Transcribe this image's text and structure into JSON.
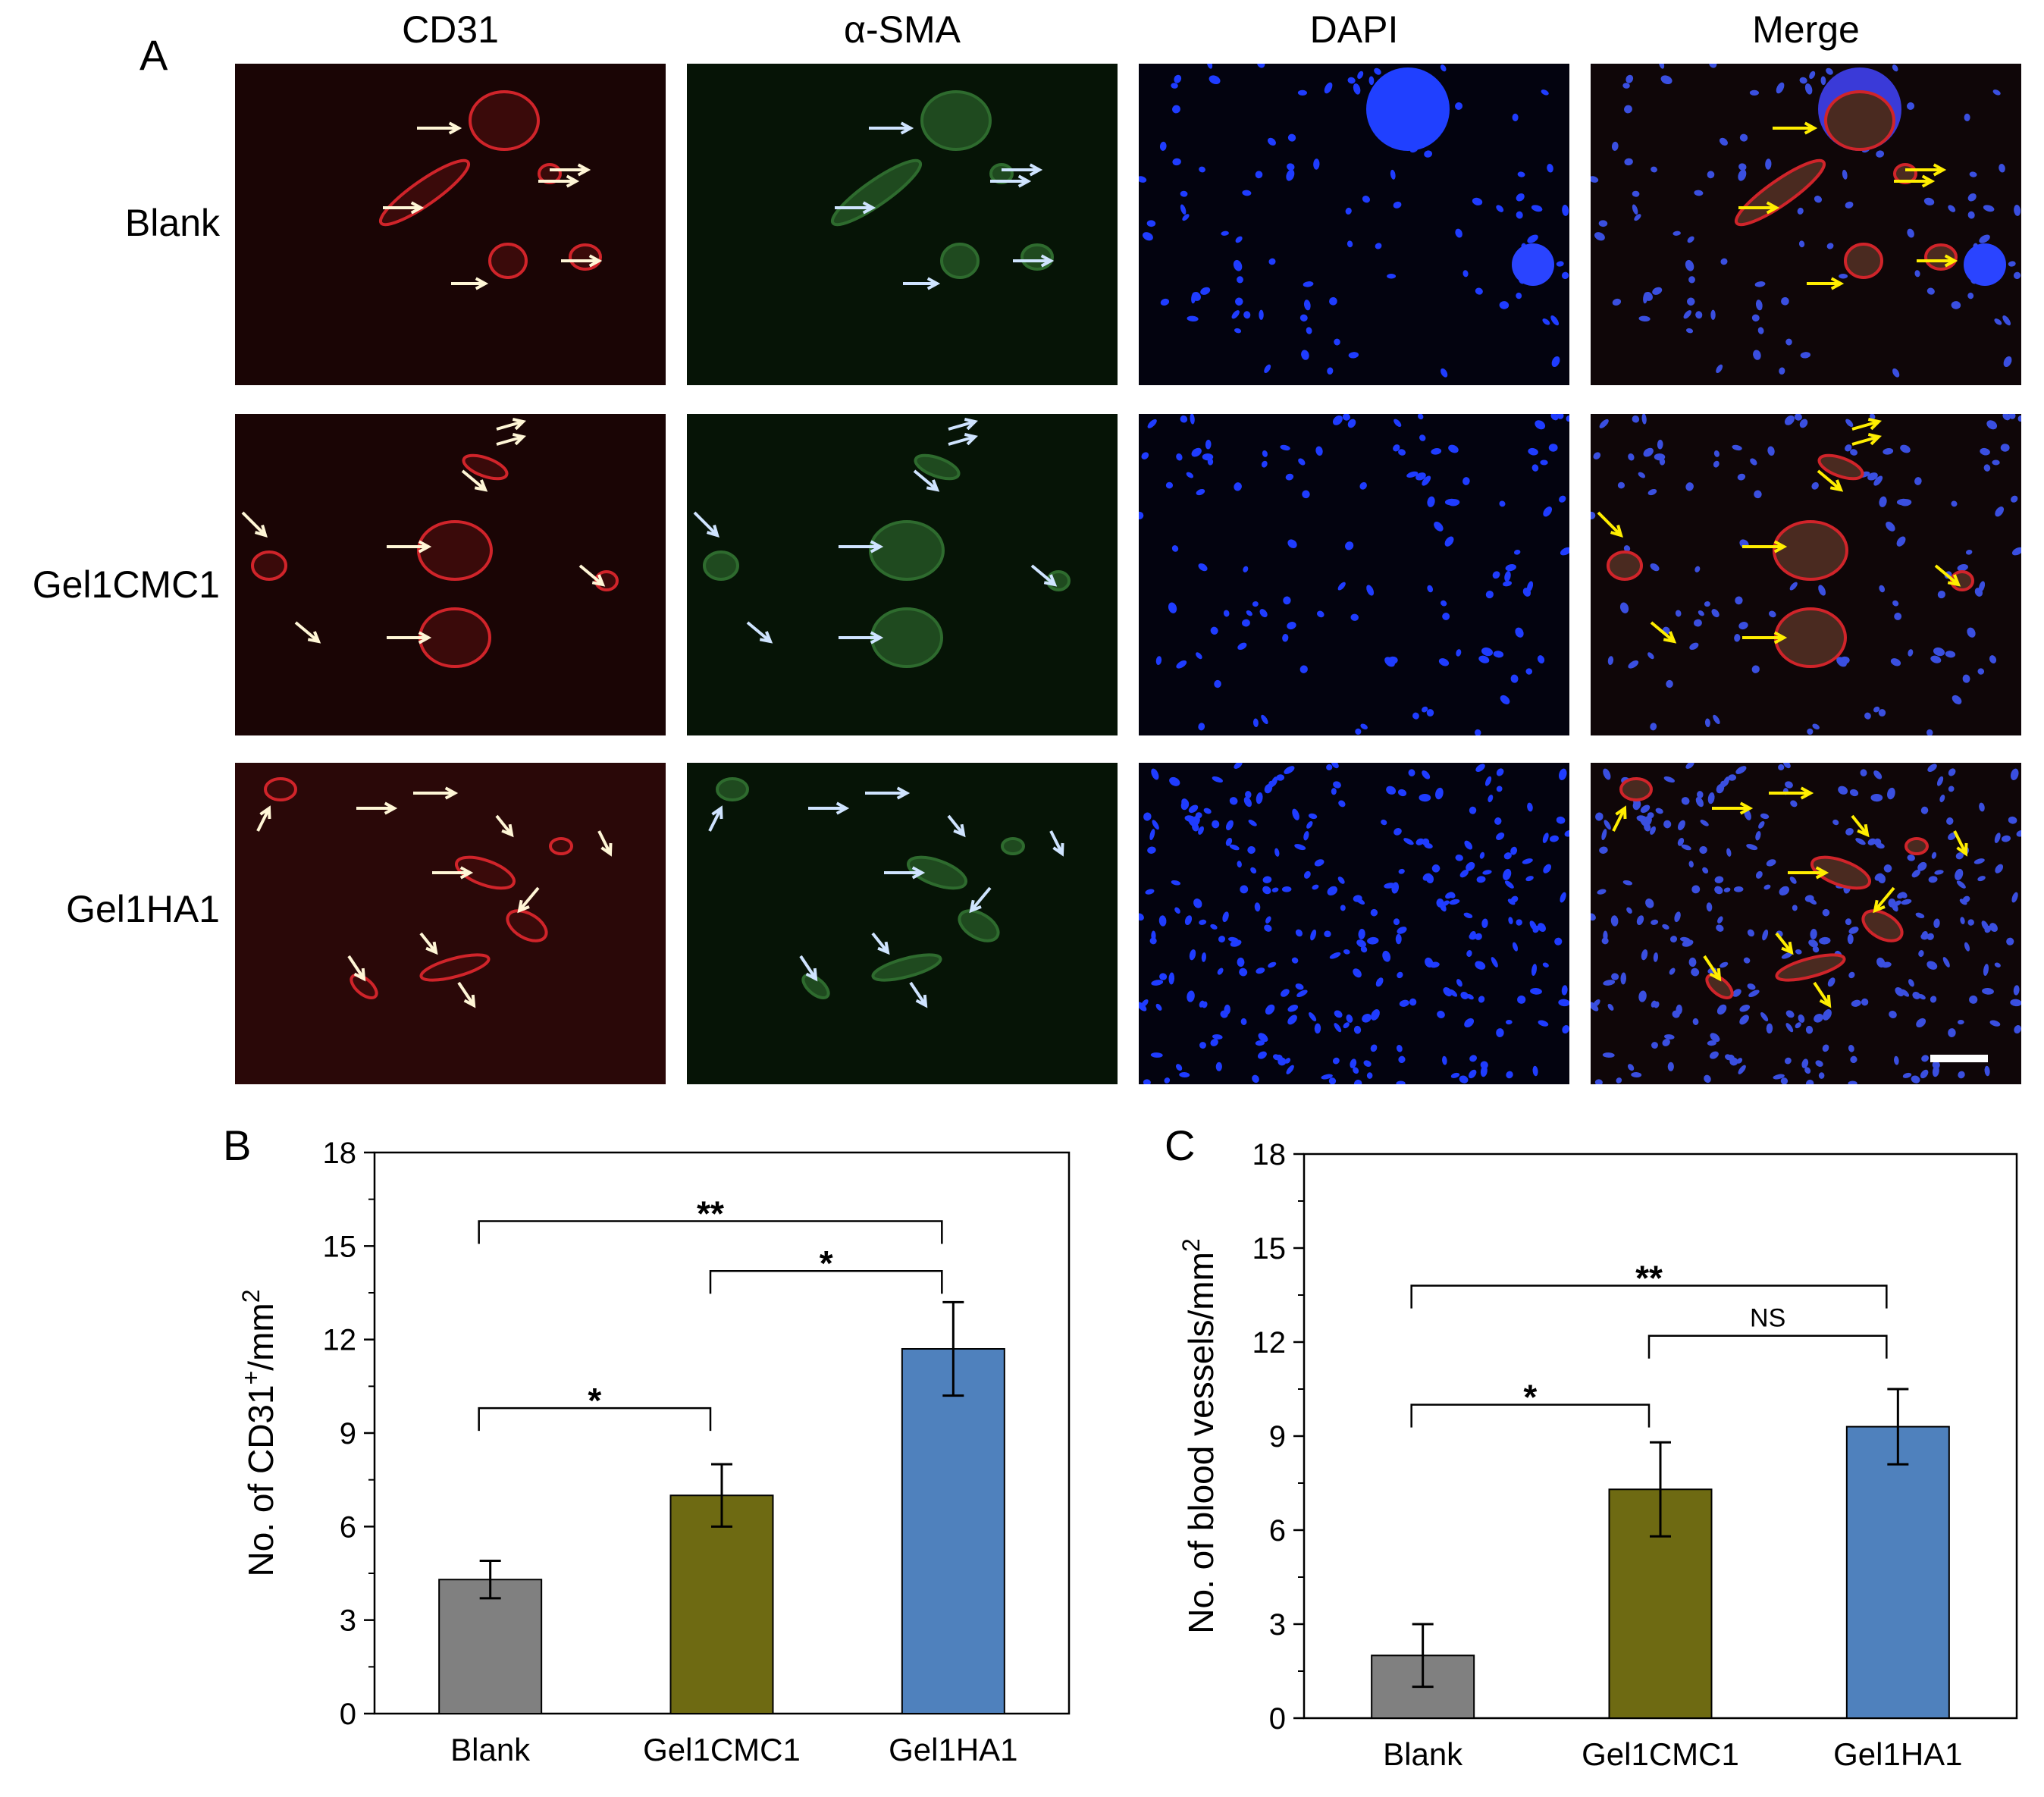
{
  "panel_a": {
    "letter": "A",
    "columns": [
      "CD31",
      "α-SMA",
      "DAPI",
      "Merge"
    ],
    "rows": [
      "Blank",
      "Gel1CMC1",
      "Gel1HA1"
    ],
    "stain_colors": {
      "CD31": "#b3161b",
      "alpha_sma": "#2a8a2a",
      "DAPI": "#1f3cff",
      "arrow_white": "#fff6d6",
      "arrow_lightblue": "#cfe4ff",
      "arrow_yellow": "#ffee00"
    }
  },
  "chart_data": [
    {
      "panel": "B",
      "type": "bar",
      "categories": [
        "Blank",
        "Gel1CMC1",
        "Gel1HA1"
      ],
      "values": [
        4.3,
        7.0,
        11.7
      ],
      "errors": [
        0.6,
        1.0,
        1.5
      ],
      "colors": [
        "#808080",
        "#6e6a12",
        "#4f81bd"
      ],
      "ylabel": "No. of CD31+/mm2",
      "ylim": [
        0,
        18
      ],
      "yticks": [
        "0",
        "3",
        "6",
        "9",
        "12",
        "15",
        "18"
      ],
      "significance": [
        {
          "from": 0,
          "to": 2,
          "label": "**",
          "level": 15.8
        },
        {
          "from": 1,
          "to": 2,
          "label": "*",
          "level": 14.2
        },
        {
          "from": 0,
          "to": 1,
          "label": "*",
          "level": 9.8
        }
      ]
    },
    {
      "panel": "C",
      "type": "bar",
      "categories": [
        "Blank",
        "Gel1CMC1",
        "Gel1HA1"
      ],
      "values": [
        2.0,
        7.3,
        9.3
      ],
      "errors": [
        1.0,
        1.5,
        1.2
      ],
      "colors": [
        "#808080",
        "#6e6a12",
        "#4f81bd"
      ],
      "ylabel": "No. of blood vessels/mm2",
      "ylim": [
        0,
        18
      ],
      "yticks": [
        "0",
        "3",
        "6",
        "9",
        "12",
        "15",
        "18"
      ],
      "significance": [
        {
          "from": 0,
          "to": 2,
          "label": "**",
          "level": 13.8
        },
        {
          "from": 1,
          "to": 2,
          "label": "NS",
          "level": 12.2
        },
        {
          "from": 0,
          "to": 1,
          "label": "*",
          "level": 10.0
        }
      ]
    }
  ]
}
